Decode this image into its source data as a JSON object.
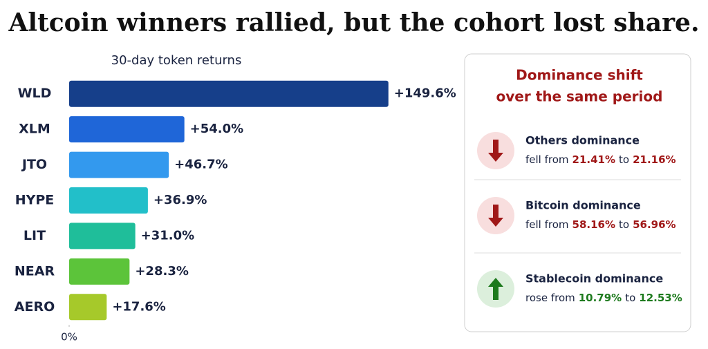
{
  "chart_data": {
    "type": "hbar",
    "title": "Altcoin winners rallied, but the cohort lost share.",
    "subtitle": "30-day token returns",
    "categories": [
      "WLD",
      "XLM",
      "JTO",
      "HYPE",
      "LIT",
      "NEAR",
      "AERO"
    ],
    "values": [
      149.6,
      54.0,
      46.7,
      36.9,
      31.0,
      28.3,
      17.6
    ],
    "value_labels": [
      "+149.6%",
      "+54.0%",
      "+46.7%",
      "+36.9%",
      "+31.0%",
      "+28.3%",
      "+17.6%"
    ],
    "colors": [
      "#163f8a",
      "#1f66d8",
      "#3399ee",
      "#22bfc9",
      "#1fbe9a",
      "#5cc43a",
      "#a6c92a"
    ],
    "xlim": [
      0,
      150
    ],
    "xticks": [
      {
        "value": 0,
        "label": "0%"
      }
    ]
  },
  "panel": {
    "title": [
      "Dominance shift",
      "over the same period"
    ],
    "items": [
      {
        "label": "Others dominance",
        "verb": "fell from",
        "from": "21.41%",
        "joiner": "to",
        "to": "21.16%",
        "direction": "down"
      },
      {
        "label": "Bitcoin dominance",
        "verb": "fell from",
        "from": "58.16%",
        "joiner": "to",
        "to": "56.96%",
        "direction": "down"
      },
      {
        "label": "Stablecoin dominance",
        "verb": "rose from",
        "from": "10.79%",
        "joiner": "to",
        "to": "12.53%",
        "direction": "up"
      }
    ]
  }
}
